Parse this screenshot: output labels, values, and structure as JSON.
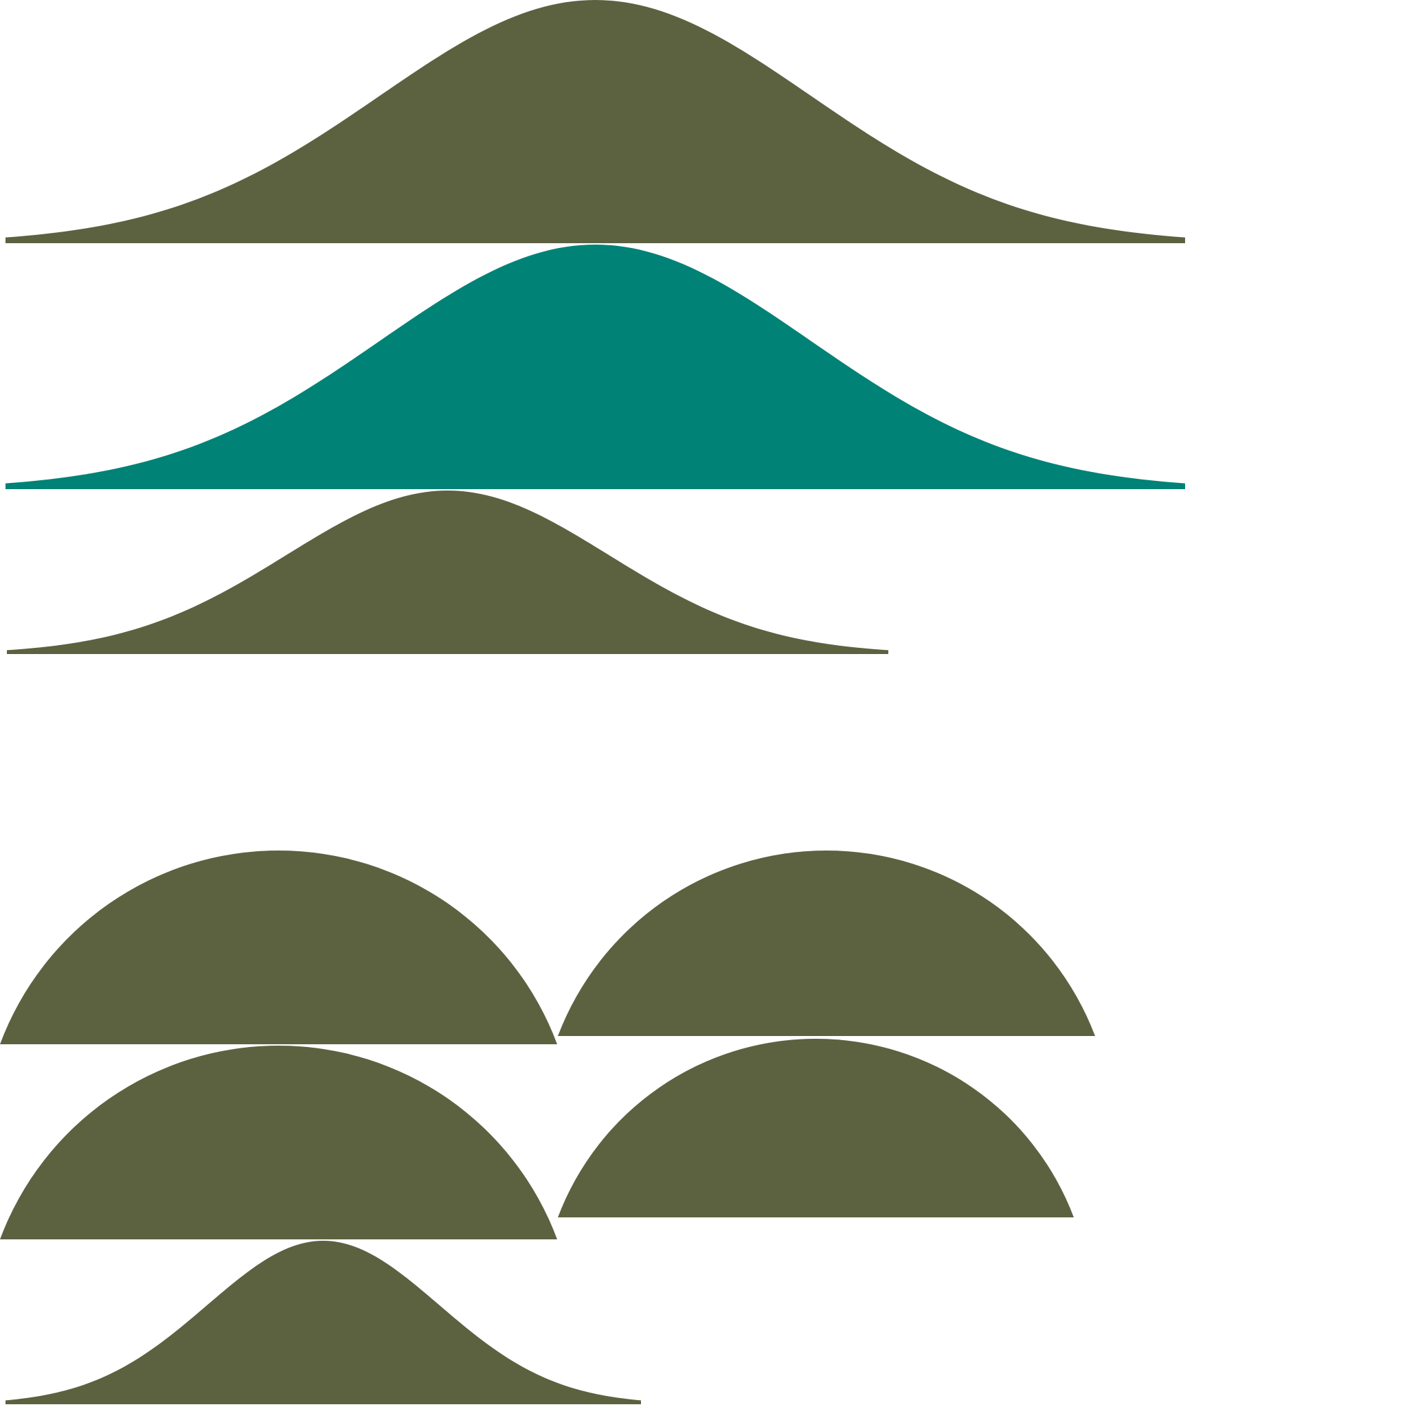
{
  "palette": {
    "olive": "#5c6240",
    "teal": "#008276",
    "background": "#ffffff"
  },
  "shapes": [
    {
      "name": "bell-mound-large-olive",
      "kind": "bell",
      "color": "olive"
    },
    {
      "name": "bell-mound-large-teal",
      "kind": "bell",
      "color": "teal"
    },
    {
      "name": "bell-mound-medium-olive",
      "kind": "bell",
      "color": "olive"
    },
    {
      "name": "dome-top-left-olive",
      "kind": "dome",
      "color": "olive"
    },
    {
      "name": "dome-top-right-olive",
      "kind": "dome",
      "color": "olive"
    },
    {
      "name": "dome-middle-left-olive",
      "kind": "dome",
      "color": "olive"
    },
    {
      "name": "dome-middle-right-olive",
      "kind": "dome",
      "color": "olive"
    },
    {
      "name": "bell-mound-small-olive",
      "kind": "bell",
      "color": "olive"
    }
  ]
}
